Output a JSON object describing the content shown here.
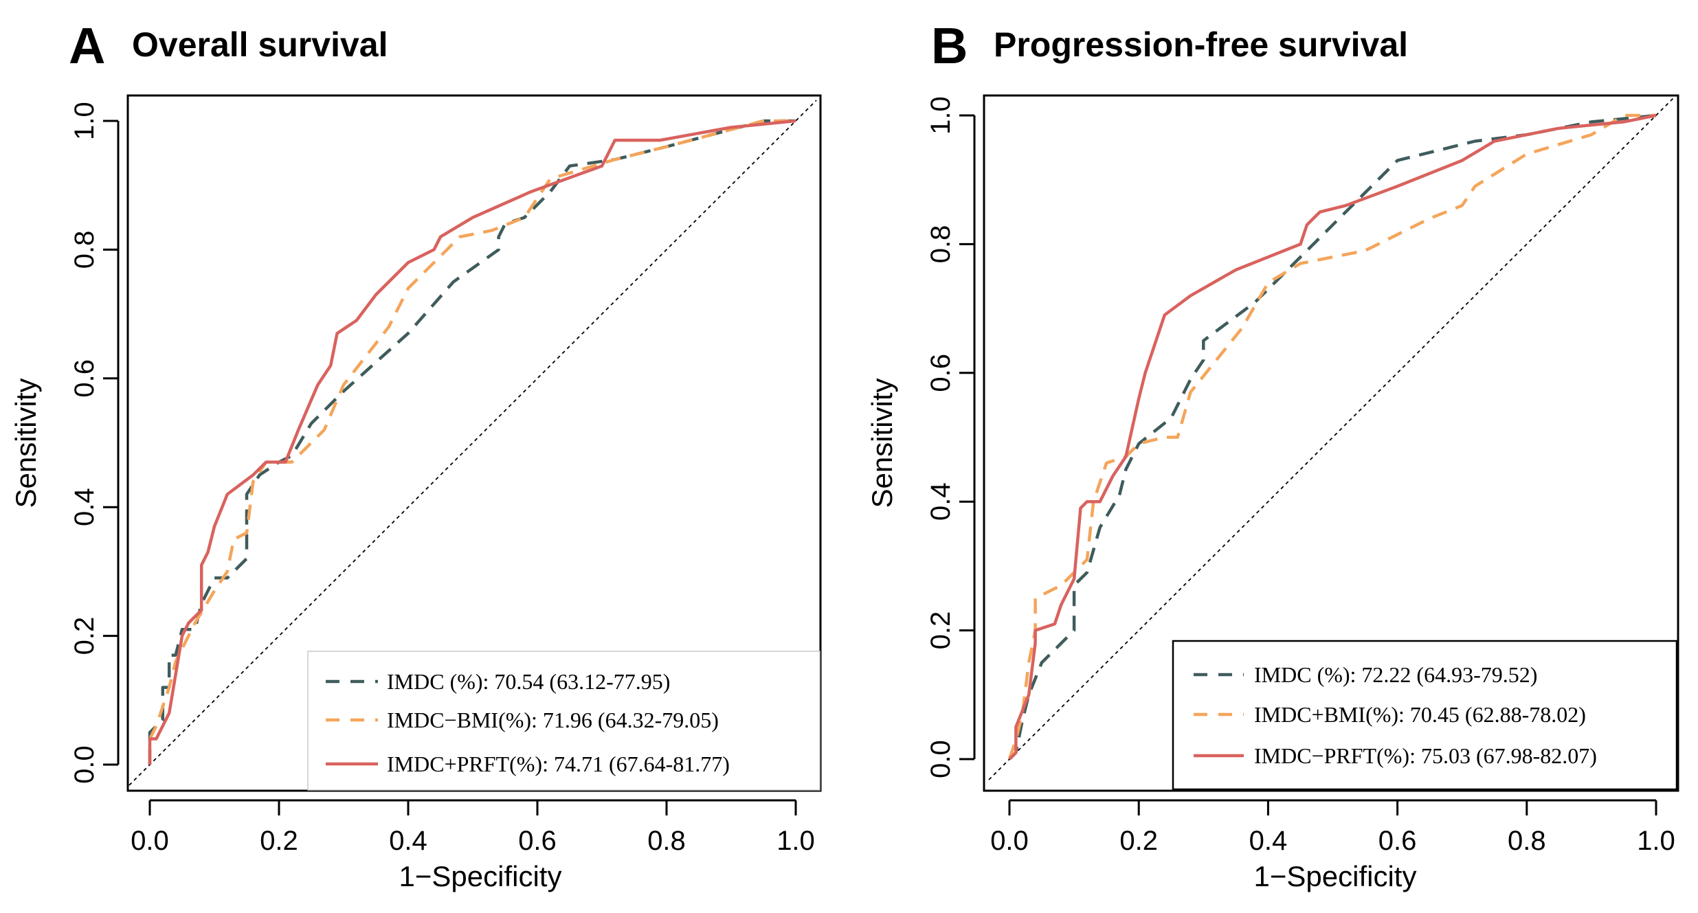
{
  "colors": {
    "imdc": "#3f5c5c",
    "bmi": "#f4a55a",
    "prft": "#d9625e"
  },
  "chart_data": [
    {
      "type": "line",
      "panel_letter": "A",
      "title": "Overall survival",
      "xlabel": "1−Specificity",
      "ylabel": "Sensitivity",
      "xlim": [
        0,
        1
      ],
      "ylim": [
        0,
        1
      ],
      "xticks": [
        "0.0",
        "0.2",
        "0.4",
        "0.6",
        "0.8",
        "1.0"
      ],
      "yticks": [
        "0.0",
        "0.2",
        "0.4",
        "0.6",
        "0.8",
        "1.0"
      ],
      "reference_line": [
        [
          0,
          0
        ],
        [
          1,
          1
        ]
      ],
      "legend_position": "bottom-right",
      "series": [
        {
          "name": "IMDC (%): 70.54 (63.12-77.95)",
          "style": "dashed",
          "color_key": "imdc",
          "points": [
            [
              0,
              0
            ],
            [
              0,
              0.05
            ],
            [
              0.02,
              0.07
            ],
            [
              0.02,
              0.12
            ],
            [
              0.03,
              0.12
            ],
            [
              0.03,
              0.17
            ],
            [
              0.04,
              0.17
            ],
            [
              0.05,
              0.21
            ],
            [
              0.07,
              0.21
            ],
            [
              0.08,
              0.25
            ],
            [
              0.1,
              0.29
            ],
            [
              0.12,
              0.29
            ],
            [
              0.14,
              0.31
            ],
            [
              0.15,
              0.32
            ],
            [
              0.15,
              0.42
            ],
            [
              0.17,
              0.45
            ],
            [
              0.2,
              0.47
            ],
            [
              0.22,
              0.48
            ],
            [
              0.25,
              0.53
            ],
            [
              0.3,
              0.58
            ],
            [
              0.4,
              0.67
            ],
            [
              0.47,
              0.75
            ],
            [
              0.54,
              0.8
            ],
            [
              0.54,
              0.82
            ],
            [
              0.55,
              0.84
            ],
            [
              0.58,
              0.85
            ],
            [
              0.62,
              0.89
            ],
            [
              0.65,
              0.93
            ],
            [
              0.72,
              0.94
            ],
            [
              0.8,
              0.96
            ],
            [
              0.95,
              1.0
            ],
            [
              1.0,
              1.0
            ]
          ]
        },
        {
          "name": "IMDC−BMI(%): 71.96 (64.32-79.05)",
          "style": "dashed",
          "color_key": "bmi",
          "points": [
            [
              0,
              0
            ],
            [
              0,
              0.04
            ],
            [
              0.01,
              0.06
            ],
            [
              0.02,
              0.09
            ],
            [
              0.03,
              0.12
            ],
            [
              0.04,
              0.16
            ],
            [
              0.05,
              0.18
            ],
            [
              0.07,
              0.22
            ],
            [
              0.1,
              0.27
            ],
            [
              0.12,
              0.3
            ],
            [
              0.13,
              0.35
            ],
            [
              0.15,
              0.36
            ],
            [
              0.16,
              0.44
            ],
            [
              0.18,
              0.47
            ],
            [
              0.22,
              0.47
            ],
            [
              0.25,
              0.5
            ],
            [
              0.27,
              0.52
            ],
            [
              0.3,
              0.59
            ],
            [
              0.37,
              0.68
            ],
            [
              0.4,
              0.74
            ],
            [
              0.45,
              0.79
            ],
            [
              0.48,
              0.82
            ],
            [
              0.53,
              0.83
            ],
            [
              0.58,
              0.85
            ],
            [
              0.62,
              0.91
            ],
            [
              0.72,
              0.94
            ],
            [
              0.8,
              0.96
            ],
            [
              0.95,
              1.0
            ],
            [
              1.0,
              1.0
            ]
          ]
        },
        {
          "name": "IMDC+PRFT(%): 74.71 (67.64-81.77)",
          "style": "solid",
          "color_key": "prft",
          "points": [
            [
              0,
              0
            ],
            [
              0,
              0.04
            ],
            [
              0.01,
              0.04
            ],
            [
              0.03,
              0.08
            ],
            [
              0.04,
              0.14
            ],
            [
              0.05,
              0.2
            ],
            [
              0.06,
              0.22
            ],
            [
              0.08,
              0.24
            ],
            [
              0.08,
              0.31
            ],
            [
              0.09,
              0.33
            ],
            [
              0.1,
              0.37
            ],
            [
              0.12,
              0.42
            ],
            [
              0.16,
              0.45
            ],
            [
              0.18,
              0.47
            ],
            [
              0.21,
              0.47
            ],
            [
              0.23,
              0.52
            ],
            [
              0.26,
              0.59
            ],
            [
              0.28,
              0.62
            ],
            [
              0.29,
              0.67
            ],
            [
              0.32,
              0.69
            ],
            [
              0.35,
              0.73
            ],
            [
              0.4,
              0.78
            ],
            [
              0.44,
              0.8
            ],
            [
              0.45,
              0.82
            ],
            [
              0.5,
              0.85
            ],
            [
              0.59,
              0.89
            ],
            [
              0.7,
              0.93
            ],
            [
              0.72,
              0.97
            ],
            [
              0.79,
              0.97
            ],
            [
              0.9,
              0.99
            ],
            [
              1.0,
              1.0
            ]
          ]
        }
      ]
    },
    {
      "type": "line",
      "panel_letter": "B",
      "title": "Progression-free survival",
      "xlabel": "1−Specificity",
      "ylabel": "Sensitivity",
      "xlim": [
        0,
        1
      ],
      "ylim": [
        0,
        1
      ],
      "xticks": [
        "0.0",
        "0.2",
        "0.4",
        "0.6",
        "0.8",
        "1.0"
      ],
      "yticks": [
        "0.0",
        "0.2",
        "0.4",
        "0.6",
        "0.8",
        "1.0"
      ],
      "reference_line": [
        [
          0,
          0
        ],
        [
          1,
          1
        ]
      ],
      "legend_position": "bottom-right",
      "series": [
        {
          "name": "IMDC (%): 72.22 (64.93-79.52)",
          "style": "dashed",
          "color_key": "imdc",
          "points": [
            [
              0,
              0
            ],
            [
              0.01,
              0.01
            ],
            [
              0.02,
              0.06
            ],
            [
              0.03,
              0.1
            ],
            [
              0.05,
              0.15
            ],
            [
              0.07,
              0.17
            ],
            [
              0.1,
              0.2
            ],
            [
              0.1,
              0.27
            ],
            [
              0.12,
              0.29
            ],
            [
              0.14,
              0.36
            ],
            [
              0.17,
              0.41
            ],
            [
              0.18,
              0.45
            ],
            [
              0.2,
              0.49
            ],
            [
              0.25,
              0.53
            ],
            [
              0.28,
              0.59
            ],
            [
              0.3,
              0.62
            ],
            [
              0.3,
              0.65
            ],
            [
              0.38,
              0.71
            ],
            [
              0.45,
              0.78
            ],
            [
              0.5,
              0.83
            ],
            [
              0.55,
              0.88
            ],
            [
              0.6,
              0.93
            ],
            [
              0.72,
              0.96
            ],
            [
              0.8,
              0.97
            ],
            [
              0.9,
              0.99
            ],
            [
              1.0,
              1.0
            ]
          ]
        },
        {
          "name": "IMDC+BMI(%): 70.45 (62.88-78.02)",
          "style": "dashed",
          "color_key": "bmi",
          "points": [
            [
              0,
              0
            ],
            [
              0.01,
              0.03
            ],
            [
              0.02,
              0.07
            ],
            [
              0.03,
              0.15
            ],
            [
              0.04,
              0.2
            ],
            [
              0.04,
              0.25
            ],
            [
              0.06,
              0.26
            ],
            [
              0.08,
              0.27
            ],
            [
              0.12,
              0.31
            ],
            [
              0.13,
              0.4
            ],
            [
              0.15,
              0.46
            ],
            [
              0.18,
              0.47
            ],
            [
              0.2,
              0.49
            ],
            [
              0.24,
              0.5
            ],
            [
              0.26,
              0.5
            ],
            [
              0.28,
              0.57
            ],
            [
              0.32,
              0.62
            ],
            [
              0.36,
              0.67
            ],
            [
              0.4,
              0.74
            ],
            [
              0.45,
              0.77
            ],
            [
              0.55,
              0.79
            ],
            [
              0.65,
              0.84
            ],
            [
              0.7,
              0.86
            ],
            [
              0.72,
              0.89
            ],
            [
              0.8,
              0.94
            ],
            [
              0.9,
              0.97
            ],
            [
              0.95,
              1.0
            ],
            [
              1.0,
              1.0
            ]
          ]
        },
        {
          "name": "IMDC−PRFT(%): 75.03 (67.98-82.07)",
          "style": "solid",
          "color_key": "prft",
          "points": [
            [
              0,
              0
            ],
            [
              0.01,
              0.01
            ],
            [
              0.01,
              0.05
            ],
            [
              0.03,
              0.1
            ],
            [
              0.04,
              0.18
            ],
            [
              0.04,
              0.2
            ],
            [
              0.07,
              0.21
            ],
            [
              0.08,
              0.24
            ],
            [
              0.1,
              0.28
            ],
            [
              0.11,
              0.39
            ],
            [
              0.12,
              0.4
            ],
            [
              0.14,
              0.4
            ],
            [
              0.16,
              0.44
            ],
            [
              0.18,
              0.47
            ],
            [
              0.2,
              0.56
            ],
            [
              0.21,
              0.6
            ],
            [
              0.24,
              0.69
            ],
            [
              0.28,
              0.72
            ],
            [
              0.35,
              0.76
            ],
            [
              0.45,
              0.8
            ],
            [
              0.46,
              0.83
            ],
            [
              0.48,
              0.85
            ],
            [
              0.52,
              0.86
            ],
            [
              0.6,
              0.89
            ],
            [
              0.7,
              0.93
            ],
            [
              0.75,
              0.96
            ],
            [
              0.85,
              0.98
            ],
            [
              0.95,
              0.99
            ],
            [
              1.0,
              1.0
            ]
          ]
        }
      ]
    }
  ]
}
